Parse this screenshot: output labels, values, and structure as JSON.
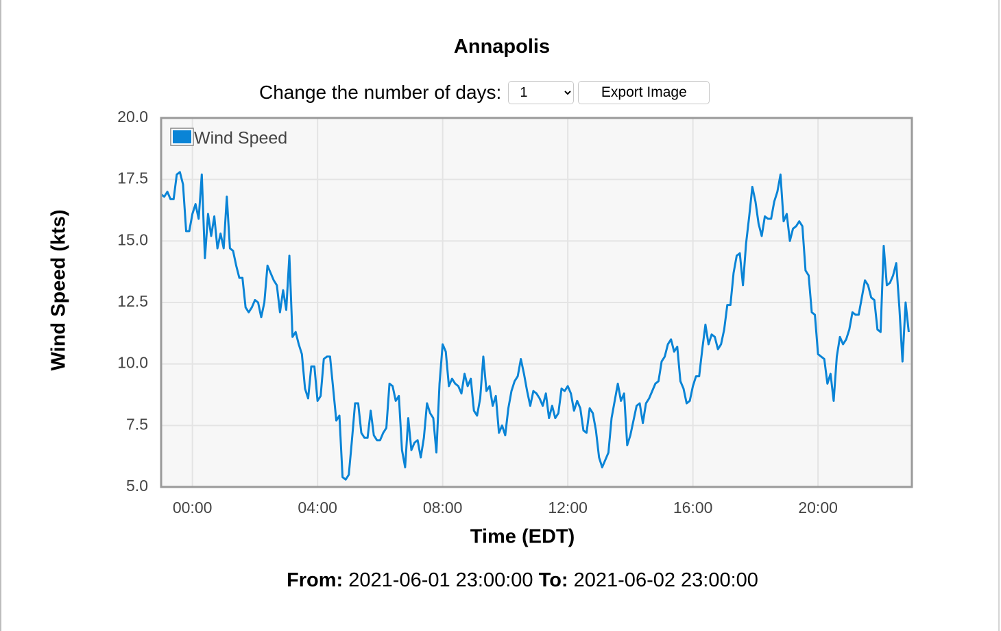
{
  "title": "Annapolis",
  "controls": {
    "days_label": "Change the number of days:",
    "days_value": "1",
    "export_button": "Export Image"
  },
  "chart_data": {
    "type": "line",
    "xlabel": "Time (EDT)",
    "ylabel": "Wind Speed (kts)",
    "xlim": [
      0,
      24
    ],
    "xticks": [
      {
        "value": 1,
        "label": "00:00"
      },
      {
        "value": 5,
        "label": "04:00"
      },
      {
        "value": 9,
        "label": "08:00"
      },
      {
        "value": 13,
        "label": "12:00"
      },
      {
        "value": 17,
        "label": "16:00"
      },
      {
        "value": 21,
        "label": "20:00"
      }
    ],
    "ylim": [
      5,
      20
    ],
    "yticks": [
      {
        "value": 5,
        "label": "5.0"
      },
      7.5,
      {
        "value": 10,
        "label": "10.0"
      },
      12.5,
      {
        "value": 15,
        "label": "15.0"
      },
      17.5,
      {
        "value": 20,
        "label": "20.0"
      }
    ],
    "grid": true,
    "legend": "upper left",
    "x": [
      0,
      0.1,
      0.2,
      0.3,
      0.4,
      0.5,
      0.6,
      0.7,
      0.8,
      0.9,
      1,
      1.1,
      1.2,
      1.3,
      1.4,
      1.5,
      1.6,
      1.7,
      1.8,
      1.9,
      2,
      2.1,
      2.2,
      2.3,
      2.4,
      2.5,
      2.6,
      2.7,
      2.8,
      2.9,
      3,
      3.1,
      3.2,
      3.3,
      3.4,
      3.5,
      3.6,
      3.7,
      3.8,
      3.9,
      4,
      4.1,
      4.2,
      4.3,
      4.4,
      4.5,
      4.6,
      4.7,
      4.8,
      4.9,
      5,
      5.1,
      5.2,
      5.3,
      5.4,
      5.5,
      5.6,
      5.7,
      5.8,
      5.9,
      6,
      6.1,
      6.2,
      6.3,
      6.4,
      6.5,
      6.6,
      6.7,
      6.8,
      6.9,
      7,
      7.1,
      7.2,
      7.3,
      7.4,
      7.5,
      7.6,
      7.7,
      7.8,
      7.9,
      8,
      8.1,
      8.2,
      8.3,
      8.4,
      8.5,
      8.6,
      8.7,
      8.8,
      8.9,
      9,
      9.1,
      9.2,
      9.3,
      9.4,
      9.5,
      9.6,
      9.7,
      9.8,
      9.9,
      10,
      10.1,
      10.2,
      10.3,
      10.4,
      10.5,
      10.6,
      10.7,
      10.8,
      10.9,
      11,
      11.1,
      11.2,
      11.3,
      11.4,
      11.5,
      11.6,
      11.7,
      11.8,
      11.9,
      12,
      12.1,
      12.2,
      12.3,
      12.4,
      12.5,
      12.6,
      12.7,
      12.8,
      12.9,
      13,
      13.1,
      13.2,
      13.3,
      13.4,
      13.5,
      13.6,
      13.7,
      13.8,
      13.9,
      14,
      14.1,
      14.2,
      14.3,
      14.4,
      14.5,
      14.6,
      14.7,
      14.8,
      14.9,
      15,
      15.1,
      15.2,
      15.3,
      15.4,
      15.5,
      15.6,
      15.7,
      15.8,
      15.9,
      16,
      16.1,
      16.2,
      16.3,
      16.4,
      16.5,
      16.6,
      16.7,
      16.8,
      16.9,
      17,
      17.1,
      17.2,
      17.3,
      17.4,
      17.5,
      17.6,
      17.7,
      17.8,
      17.9,
      18,
      18.1,
      18.2,
      18.3,
      18.4,
      18.5,
      18.6,
      18.7,
      18.8,
      18.9,
      19,
      19.1,
      19.2,
      19.3,
      19.4,
      19.5,
      19.6,
      19.7,
      19.8,
      19.9,
      20,
      20.1,
      20.2,
      20.3,
      20.4,
      20.5,
      20.6,
      20.7,
      20.8,
      20.9,
      21,
      21.1,
      21.2,
      21.3,
      21.4,
      21.5,
      21.6,
      21.7,
      21.8,
      21.9,
      22,
      22.1,
      22.2,
      22.3,
      22.4,
      22.5,
      22.6,
      22.7,
      22.8,
      22.9,
      23,
      23.1,
      23.2,
      23.3,
      23.4,
      23.5,
      23.6,
      23.7,
      23.8,
      23.9
    ],
    "series": [
      {
        "name": "Wind Speed",
        "color": "#0a84d6",
        "values": [
          16.9,
          16.8,
          17.0,
          16.7,
          16.7,
          17.7,
          17.8,
          17.3,
          15.4,
          15.4,
          16.1,
          16.5,
          15.9,
          17.7,
          14.3,
          16.1,
          15.2,
          16.0,
          14.7,
          15.3,
          14.7,
          16.8,
          14.7,
          14.6,
          14.0,
          13.5,
          13.5,
          12.3,
          12.1,
          12.3,
          12.6,
          12.5,
          11.9,
          12.5,
          14.0,
          13.7,
          13.4,
          13.2,
          12.1,
          13.0,
          12.2,
          14.4,
          11.1,
          11.3,
          10.8,
          10.4,
          9.0,
          8.6,
          9.9,
          9.9,
          8.5,
          8.7,
          10.2,
          10.3,
          10.3,
          9.0,
          7.7,
          7.9,
          5.4,
          5.3,
          5.5,
          6.9,
          8.4,
          8.4,
          7.2,
          7.0,
          7.0,
          8.1,
          7.1,
          6.9,
          6.9,
          7.2,
          7.4,
          9.2,
          9.1,
          8.5,
          8.7,
          6.5,
          5.8,
          7.8,
          6.5,
          6.8,
          6.9,
          6.2,
          7.0,
          8.4,
          8.0,
          7.8,
          6.4,
          9.2,
          10.8,
          10.5,
          9.1,
          9.4,
          9.2,
          9.1,
          8.8,
          9.6,
          9.1,
          9.4,
          8.1,
          7.9,
          8.6,
          10.3,
          8.9,
          9.1,
          8.3,
          8.7,
          7.2,
          7.5,
          7.1,
          8.2,
          8.9,
          9.3,
          9.5,
          10.2,
          9.6,
          8.9,
          8.3,
          8.9,
          8.8,
          8.6,
          8.3,
          8.8,
          7.8,
          8.3,
          7.8,
          8.0,
          9.0,
          8.9,
          9.1,
          8.8,
          8.1,
          8.5,
          8.2,
          7.3,
          7.2,
          8.2,
          8.0,
          7.3,
          6.2,
          5.8,
          6.1,
          6.4,
          7.8,
          8.5,
          9.2,
          8.5,
          8.8,
          6.7,
          7.1,
          7.7,
          8.3,
          8.4,
          7.6,
          8.4,
          8.6,
          8.9,
          9.2,
          9.3,
          10.1,
          10.3,
          10.8,
          11.0,
          10.5,
          10.7,
          9.3,
          9.0,
          8.4,
          8.5,
          9.1,
          9.5,
          9.5,
          10.6,
          11.6,
          10.8,
          11.2,
          11.1,
          10.6,
          10.8,
          11.4,
          12.4,
          12.4,
          13.7,
          14.4,
          14.5,
          13.2,
          14.9,
          16.0,
          17.2,
          16.6,
          15.7,
          15.2,
          16.0,
          15.9,
          15.9,
          16.6,
          17.0,
          17.7,
          15.8,
          16.1,
          15.0,
          15.5,
          15.6,
          15.8,
          15.6,
          13.8,
          13.6,
          12.1,
          12.0,
          10.4,
          10.3,
          10.2,
          9.2,
          9.6,
          8.5,
          10.3,
          11.1,
          10.8,
          11.0,
          11.4,
          12.1,
          12.0,
          12.0,
          12.7,
          13.4,
          13.2,
          12.7,
          12.6,
          11.4,
          11.3,
          14.8,
          13.2,
          13.3,
          13.6,
          14.1,
          12.3,
          10.1,
          12.5,
          11.3
        ]
      }
    ]
  },
  "footer": {
    "from_label": "From:",
    "from": "2021-06-01 23:00:00",
    "to_label": "To:",
    "to": "2021-06-02 23:00:00"
  }
}
